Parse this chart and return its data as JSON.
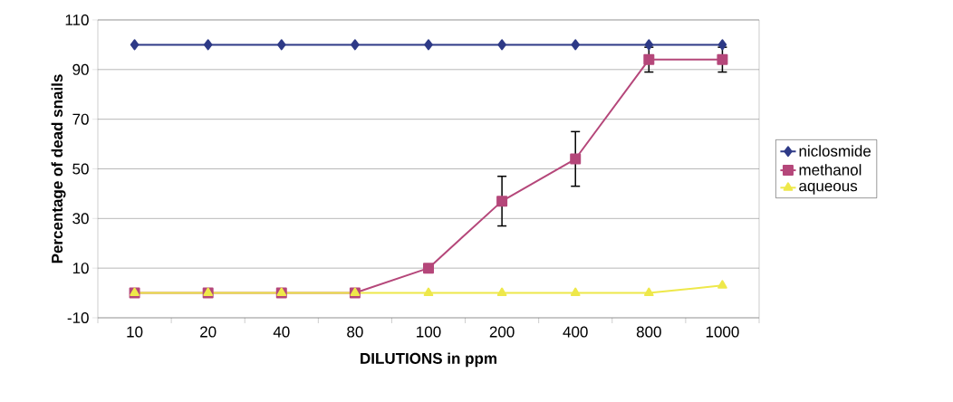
{
  "chart_data": {
    "type": "line",
    "xlabel": "DILUTIONS in ppm",
    "ylabel": "Percentage of dead snails",
    "categories": [
      "10",
      "20",
      "40",
      "80",
      "100",
      "200",
      "400",
      "800",
      "1000"
    ],
    "series": [
      {
        "name": "niclosmide",
        "color": "#2e3a87",
        "marker": "diamond",
        "values": [
          100,
          100,
          100,
          100,
          100,
          100,
          100,
          100,
          100
        ]
      },
      {
        "name": "methanol",
        "color": "#b5477a",
        "marker": "square",
        "values": [
          0,
          0,
          0,
          0,
          10,
          37,
          54,
          94,
          94
        ],
        "errors": [
          null,
          null,
          null,
          null,
          null,
          10,
          11,
          5,
          5
        ]
      },
      {
        "name": "aqueous",
        "color": "#eee84a",
        "marker": "triangle",
        "values": [
          0,
          0,
          0,
          0,
          0,
          0,
          0,
          0,
          3
        ]
      }
    ],
    "ylim": [
      -10,
      110
    ],
    "yticks": [
      -10,
      10,
      30,
      50,
      70,
      90,
      110
    ],
    "grid": "y",
    "legend": "right",
    "line_style": "solid"
  }
}
